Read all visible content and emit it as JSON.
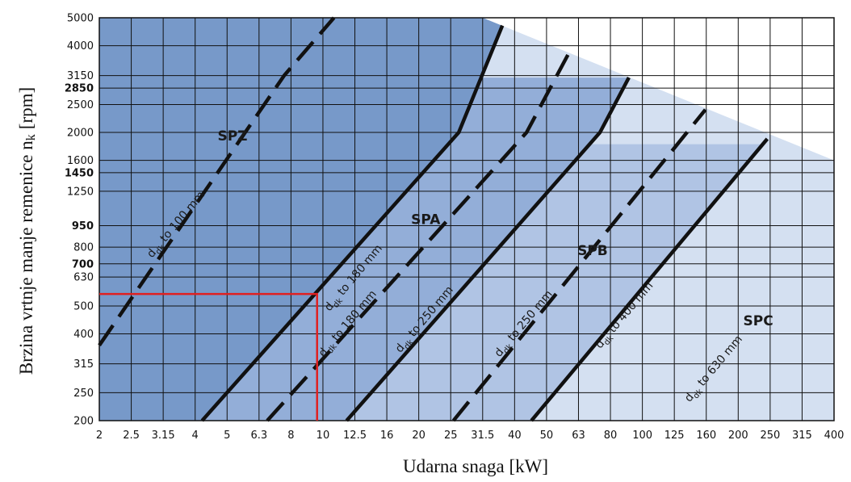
{
  "chart_data": {
    "type": "line",
    "xlabel": "Udarna snaga [kW]",
    "ylabel": "Brzina vrtnje manje remenice n",
    "ylabel_subscript": "k",
    "ylabel_unit": "[rpm]",
    "x_scale": "log",
    "y_scale": "log",
    "xlim": [
      2,
      400
    ],
    "ylim": [
      200,
      5000
    ],
    "x_ticks": [
      "2",
      "2.5",
      "3.15",
      "4",
      "5",
      "6.3",
      "8",
      "10",
      "12.5",
      "16",
      "20",
      "25",
      "31.5",
      "40",
      "50",
      "63",
      "80",
      "100",
      "125",
      "160",
      "200",
      "250",
      "315",
      "400"
    ],
    "y_ticks": [
      {
        "label": "5000",
        "bold": false
      },
      {
        "label": "4000",
        "bold": false
      },
      {
        "label": "3150",
        "bold": false
      },
      {
        "label": "2850",
        "bold": true
      },
      {
        "label": "2500",
        "bold": false
      },
      {
        "label": "2000",
        "bold": false
      },
      {
        "label": "1600",
        "bold": false
      },
      {
        "label": "1450",
        "bold": true
      },
      {
        "label": "1250",
        "bold": false
      },
      {
        "label": "950",
        "bold": true
      },
      {
        "label": "800",
        "bold": false
      },
      {
        "label": "700",
        "bold": true
      },
      {
        "label": "630",
        "bold": false
      },
      {
        "label": "500",
        "bold": false
      },
      {
        "label": "400",
        "bold": false
      },
      {
        "label": "315",
        "bold": false
      },
      {
        "label": "250",
        "bold": false
      },
      {
        "label": "200",
        "bold": false
      }
    ],
    "grid": true,
    "zones": [
      {
        "label": "SPZ",
        "color": "#7799c9",
        "label_at": [
          5.2,
          1950
        ]
      },
      {
        "label": "SPA",
        "color": "#93aed8",
        "label_at": [
          21,
          1000
        ]
      },
      {
        "label": "SPB",
        "color": "#b0c4e4",
        "label_at": [
          70,
          780
        ]
      },
      {
        "label": "SPC",
        "color": "#d4e0f1",
        "label_at": [
          230,
          445
        ]
      }
    ],
    "series": [
      {
        "label_main": "d",
        "label_sub": "dk",
        "label_rest": " to 100 mm",
        "style": "dashed",
        "points": [
          [
            2,
            365
          ],
          [
            7.6,
            3150
          ],
          [
            10.8,
            5000
          ]
        ],
        "label_at": [
          3.5,
          950
        ]
      },
      {
        "label_main": "d",
        "label_sub": "dk",
        "label_rest": " to 180 mm",
        "style": "solid",
        "points": [
          [
            4.2,
            200
          ],
          [
            26.5,
            2000
          ],
          [
            36.5,
            4700
          ]
        ],
        "label_at": [
          12.5,
          620
        ]
      },
      {
        "label_main": "d",
        "label_sub": "dk",
        "label_rest": " to 180 mm",
        "style": "dashed",
        "points": [
          [
            6.7,
            200
          ],
          [
            43.5,
            2000
          ],
          [
            59,
            3800
          ]
        ],
        "label_at": [
          12,
          430
        ]
      },
      {
        "label_main": "d",
        "label_sub": "dk",
        "label_rest": " to 250 mm",
        "style": "solid",
        "points": [
          [
            11.8,
            200
          ],
          [
            74,
            2000
          ],
          [
            91,
            3100
          ]
        ],
        "label_at": [
          21,
          445
        ]
      },
      {
        "label_main": "d",
        "label_sub": "dk",
        "label_rest": " to 250 mm",
        "style": "dashed",
        "points": [
          [
            25.5,
            200
          ],
          [
            159,
            2400
          ]
        ],
        "label_at": [
          43,
          430
        ]
      },
      {
        "label_main": "d",
        "label_sub": "dk",
        "label_rest": " to 400 mm",
        "style": "solid",
        "points": [
          [
            45,
            200
          ],
          [
            245,
            1900
          ]
        ],
        "label_at": [
          89,
          460
        ]
      },
      {
        "label_main": "d",
        "label_sub": "dk",
        "label_rest": " to 630 mm",
        "style": "solid",
        "points": [],
        "label_at": [
          170,
          300
        ]
      }
    ],
    "boundary": {
      "points": [
        [
          31.5,
          5000
        ],
        [
          400,
          1600
        ]
      ],
      "color": "#ffffff"
    },
    "marker": {
      "color": "#e02020",
      "x": 9.6,
      "y": 550
    }
  }
}
